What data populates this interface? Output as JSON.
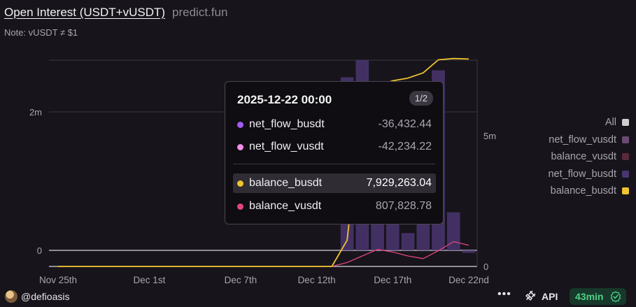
{
  "header": {
    "title": "Open Interest (USDT+vUSDT)",
    "subtitle": "predict.fun",
    "note": "Note: vUSDT ≠ $1"
  },
  "colors": {
    "net_flow_busdt": "#a45cf0",
    "net_flow_vusdt": "#f28fe8",
    "balance_busdt": "#f0c330",
    "balance_vusdt": "#e0467e",
    "bar": "#4b3570",
    "legend_net_flow_vusdt": "#6a4a72",
    "legend_balance_vusdt": "#5a2a3a",
    "legend_net_flow_busdt": "#4b3570",
    "legend_all": "#cfcfcf"
  },
  "chart_data": {
    "type": "bar",
    "left_axis_ticks": [
      "2m",
      "0"
    ],
    "right_axis_ticks": [
      "5m",
      "0"
    ],
    "x_ticks": [
      "Nov 25th",
      "Dec 1st",
      "Dec 7th",
      "Dec 12th",
      "Dec 17th",
      "Dec 22nd"
    ],
    "x_range": [
      "2025-11-25",
      "2025-12-22"
    ],
    "left_ylim": [
      -200000,
      2800000
    ],
    "right_ylim": [
      0,
      8000000
    ],
    "series": [
      {
        "name": "net_flow_busdt",
        "kind": "bar",
        "x": [
          "2025-12-14",
          "2025-12-15",
          "2025-12-16",
          "2025-12-17",
          "2025-12-18",
          "2025-12-19",
          "2025-12-20",
          "2025-12-21",
          "2025-12-22"
        ],
        "values": [
          2500000,
          2750000,
          2000000,
          800000,
          250000,
          700000,
          2600000,
          550000,
          -36432
        ]
      },
      {
        "name": "balance_busdt",
        "kind": "line",
        "x": [
          "2025-11-25",
          "2025-12-13",
          "2025-12-14",
          "2025-12-15",
          "2025-12-16",
          "2025-12-17",
          "2025-12-18",
          "2025-12-19",
          "2025-12-20",
          "2025-12-21",
          "2025-12-22"
        ],
        "values": [
          0,
          0,
          1000000,
          6200000,
          6900000,
          7100000,
          7200000,
          7400000,
          7900000,
          7950000,
          7929263
        ]
      },
      {
        "name": "balance_vusdt",
        "kind": "line",
        "x": [
          "2025-11-25",
          "2025-12-13",
          "2025-12-14",
          "2025-12-15",
          "2025-12-16",
          "2025-12-17",
          "2025-12-18",
          "2025-12-19",
          "2025-12-20",
          "2025-12-21",
          "2025-12-22"
        ],
        "values": [
          0,
          0,
          150000,
          400000,
          650000,
          550000,
          400000,
          300000,
          600000,
          950000,
          807829
        ]
      }
    ],
    "legend": [
      "All",
      "net_flow_vusdt",
      "balance_vusdt",
      "net_flow_busdt",
      "balance_busdt"
    ]
  },
  "tooltip": {
    "date": "2025-12-22 00:00",
    "page": "1/2",
    "rows": [
      {
        "name": "net_flow_busdt",
        "value": "-36,432.44"
      },
      {
        "name": "net_flow_vusdt",
        "value": "-42,234.22"
      },
      {
        "name": "balance_busdt",
        "value": "7,929,263.04"
      },
      {
        "name": "balance_vusdt",
        "value": "807,828.78"
      }
    ]
  },
  "footer": {
    "user": "@defioasis",
    "more": "•••",
    "api": "API",
    "status": "43min"
  }
}
